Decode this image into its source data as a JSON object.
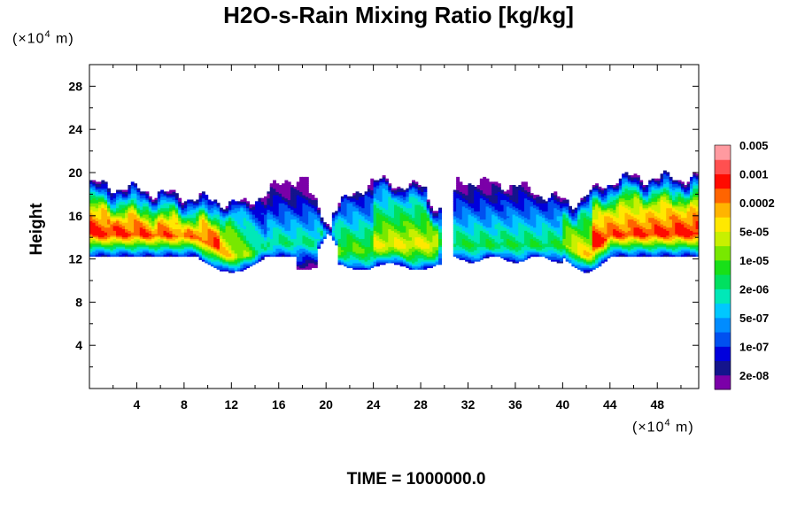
{
  "chart_data": {
    "type": "heatmap",
    "title": "H2O-s-Rain Mixing Ratio [kg/kg]",
    "ylabel": "Height",
    "y_unit": {
      "prefix": "(×10",
      "exp": "4",
      "suffix": " m)"
    },
    "x_unit": {
      "prefix": "(×10",
      "exp": "4",
      "suffix": " m)"
    },
    "footer": "TIME = 1000000.0",
    "xlim": [
      0,
      51.5
    ],
    "ylim": [
      0,
      30
    ],
    "x_ticks": [
      4,
      8,
      12,
      16,
      20,
      24,
      28,
      32,
      36,
      40,
      44,
      48
    ],
    "y_ticks": [
      4,
      8,
      12,
      16,
      20,
      24,
      28
    ],
    "x_tick_labels": [
      "4",
      "8",
      "12",
      "16",
      "20",
      "24",
      "28",
      "32",
      "36",
      "40",
      "44",
      "48"
    ],
    "y_tick_labels": [
      "4",
      "8",
      "12",
      "16",
      "20",
      "24",
      "28"
    ],
    "colorbar": {
      "colors": [
        "#7b00a8",
        "#14148c",
        "#0000dc",
        "#0050f0",
        "#008cff",
        "#00c8ff",
        "#00e8b8",
        "#00e060",
        "#18e018",
        "#78e800",
        "#c8f000",
        "#ffe800",
        "#ffb400",
        "#ff6400",
        "#ff0a00",
        "#ff5050",
        "#ff9aa0"
      ],
      "labels": [
        "2e-08",
        "1e-07",
        "5e-07",
        "2e-06",
        "1e-05",
        "5e-05",
        "0.0002",
        "0.001",
        "0.005"
      ]
    }
  }
}
